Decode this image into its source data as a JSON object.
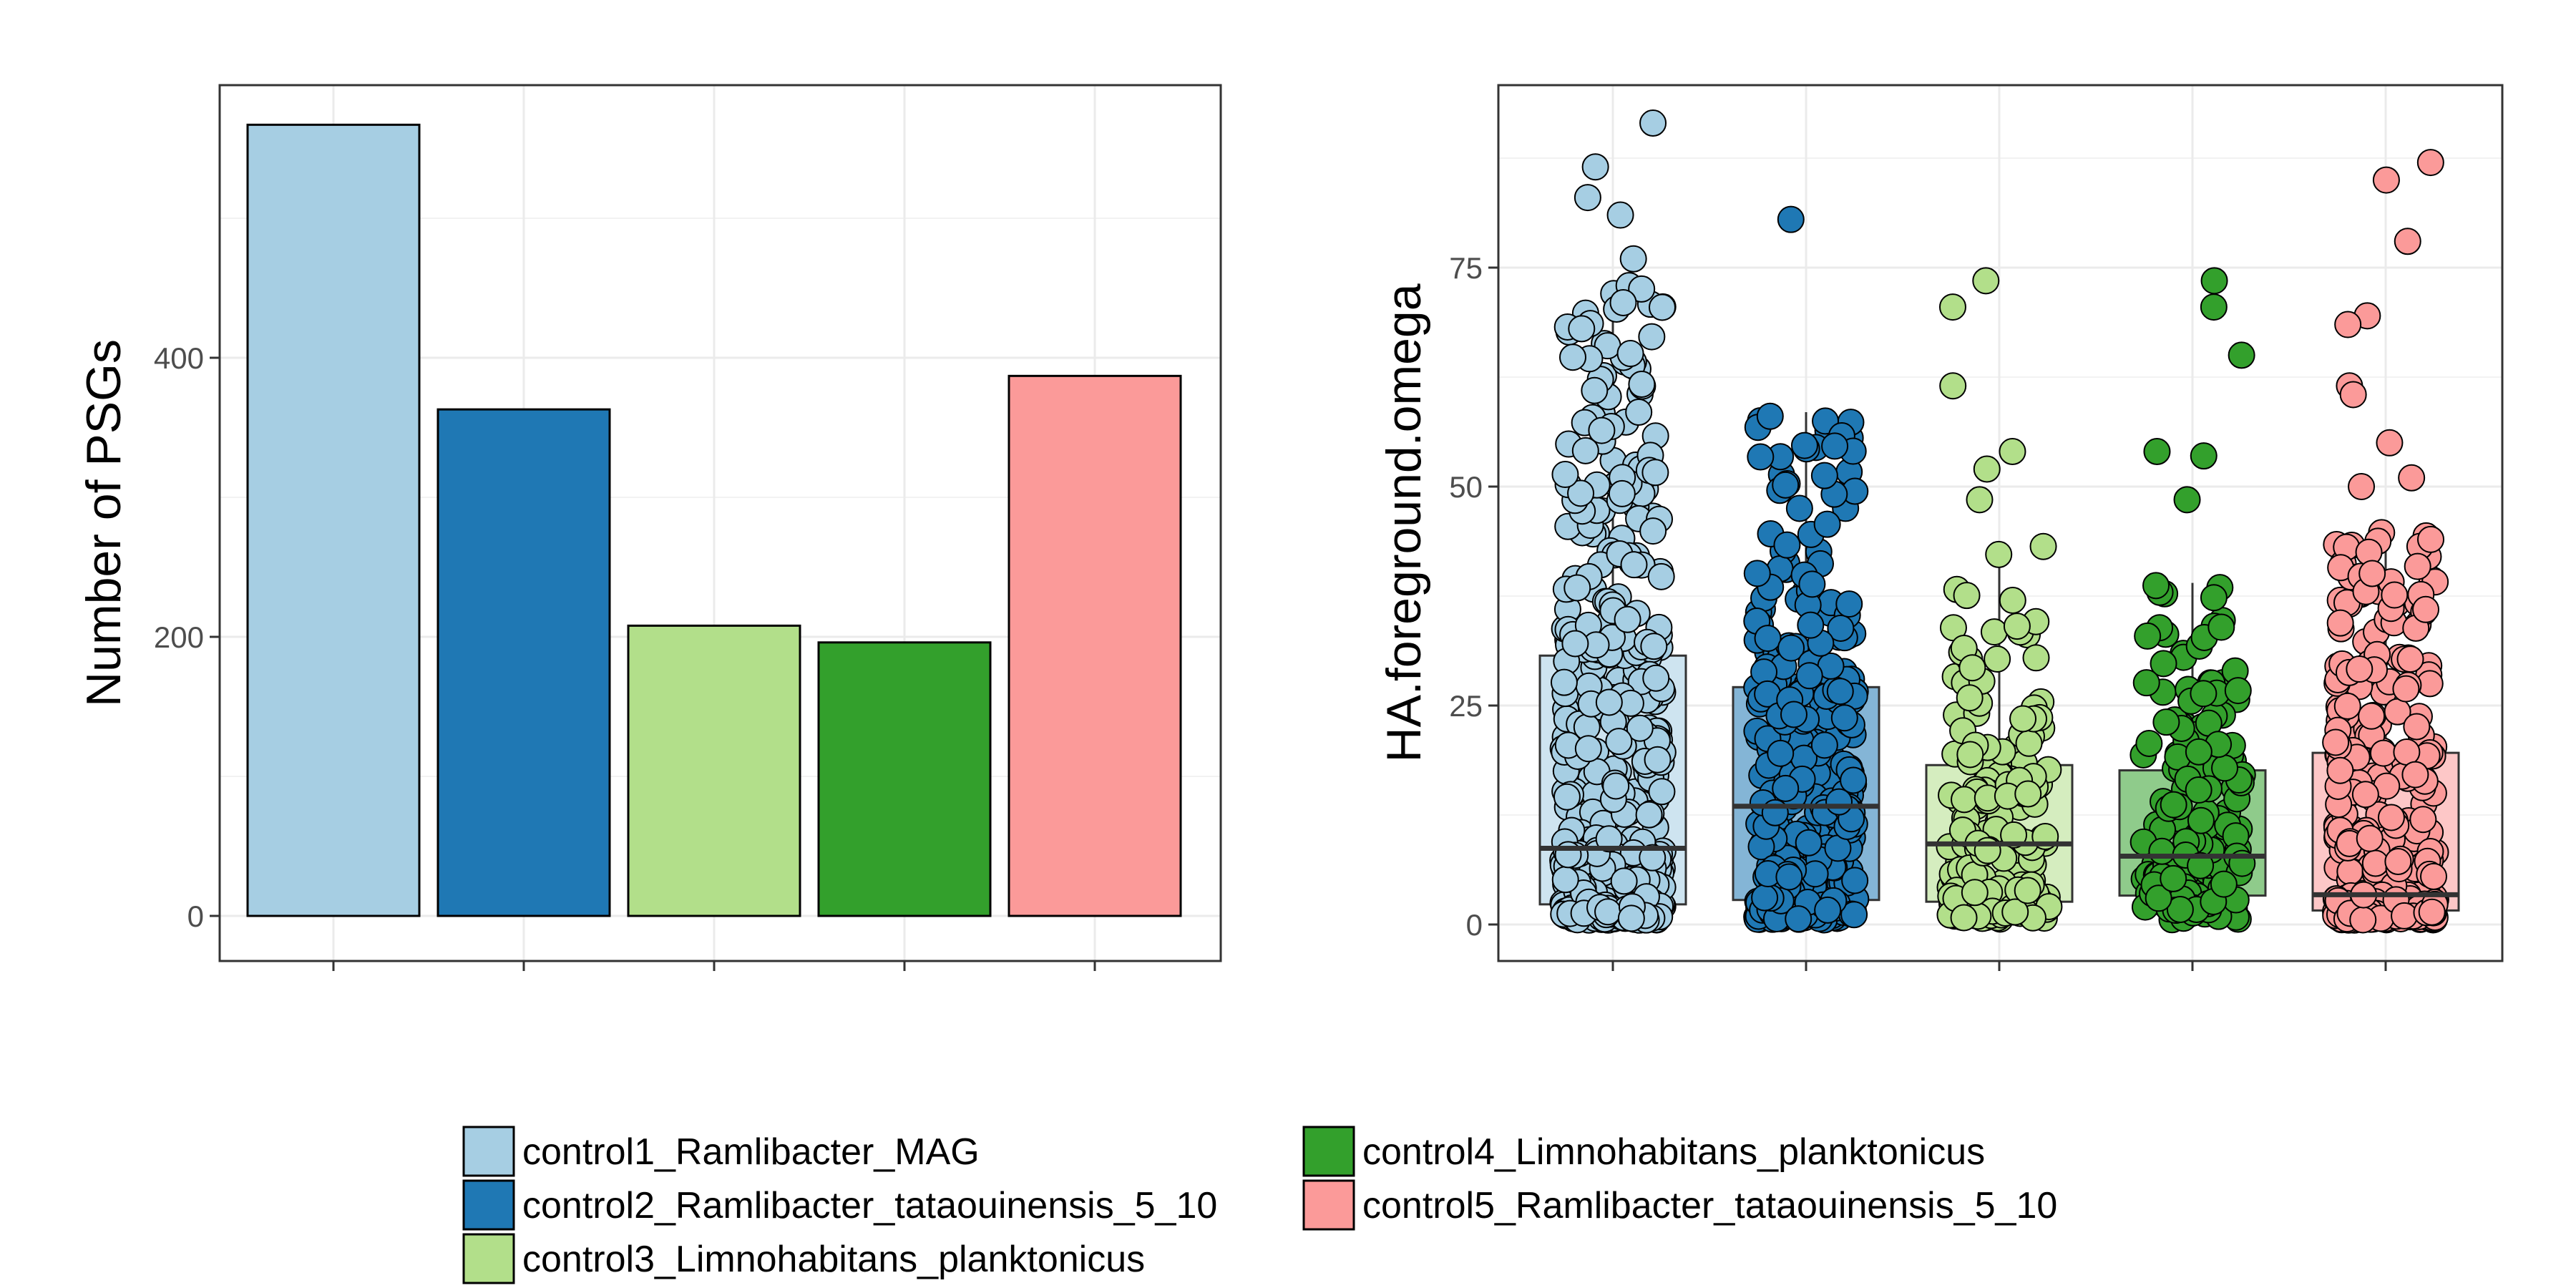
{
  "chart_data": [
    {
      "type": "bar",
      "categories": [
        "control1_Ramlibacter_MAG",
        "control2_Ramlibacter_tataouinensis_5_10",
        "control3_Limnohabitans_planktonicus",
        "control4_Limnohabitans_planktonicus",
        "control5_Ramlibacter_tataouinensis_5_10"
      ],
      "values": [
        567,
        363,
        208,
        196,
        387
      ],
      "colors": [
        "#a6cee3",
        "#1f78b4",
        "#b2df8a",
        "#33a02c",
        "#fb9a99"
      ],
      "xlabel": "",
      "ylabel": "Number of PSGs",
      "ylim": [
        0,
        600
      ],
      "yticks": [
        0,
        200,
        400
      ],
      "grid": true
    },
    {
      "type": "box",
      "categories": [
        "control1_Ramlibacter_MAG",
        "control2_Ramlibacter_tataouinensis_5_10",
        "control3_Limnohabitans_planktonicus",
        "control4_Limnohabitans_planktonicus",
        "control5_Ramlibacter_tataouinensis_5_10"
      ],
      "colors": [
        "#a6cee3",
        "#1f78b4",
        "#b2df8a",
        "#33a02c",
        "#fb9a99"
      ],
      "boxes": [
        {
          "q1": 2.3,
          "median": 8.7,
          "q3": 30.7,
          "whisker_low": 0.5,
          "whisker_high": 73.0,
          "n_points": 567
        },
        {
          "q1": 2.8,
          "median": 13.5,
          "q3": 27.1,
          "whisker_low": 0.5,
          "whisker_high": 58.5,
          "n_points": 363
        },
        {
          "q1": 2.6,
          "median": 9.2,
          "q3": 18.2,
          "whisker_low": 0.5,
          "whisker_high": 43.5,
          "n_points": 208
        },
        {
          "q1": 3.3,
          "median": 7.8,
          "q3": 17.6,
          "whisker_low": 0.5,
          "whisker_high": 39.0,
          "n_points": 196
        },
        {
          "q1": 1.6,
          "median": 3.4,
          "q3": 19.6,
          "whisker_low": 0.5,
          "whisker_high": 45.0,
          "n_points": 387
        }
      ],
      "outliers": [
        [
          91.5,
          86.5,
          83.0,
          81.0,
          76.0,
          71.0
        ],
        [
          80.5
        ],
        [
          73.5,
          70.5,
          61.5,
          54.0,
          52.0,
          48.5
        ],
        [
          73.5,
          70.5,
          65.0,
          54.0,
          53.5,
          48.5
        ],
        [
          87.0,
          85.0,
          78.0,
          69.5,
          68.5,
          61.5,
          60.5,
          55.0,
          51.0,
          50.0
        ]
      ],
      "xlabel": "",
      "ylabel": "HA.foreground.omega",
      "ylim": [
        0,
        95
      ],
      "yticks": [
        0,
        25,
        50,
        75
      ],
      "grid": true
    }
  ],
  "legend": {
    "position": "bottom",
    "items": [
      {
        "label": "control1_Ramlibacter_MAG",
        "color": "#a6cee3"
      },
      {
        "label": "control2_Ramlibacter_tataouinensis_5_10",
        "color": "#1f78b4"
      },
      {
        "label": "control3_Limnohabitans_planktonicus",
        "color": "#b2df8a"
      },
      {
        "label": "control4_Limnohabitans_planktonicus",
        "color": "#33a02c"
      },
      {
        "label": "control5_Ramlibacter_tataouinensis_5_10",
        "color": "#fb9a99"
      }
    ]
  }
}
